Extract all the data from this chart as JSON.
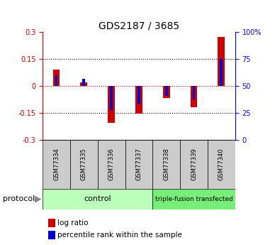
{
  "title": "GDS2187 / 3685",
  "samples": [
    "GSM77334",
    "GSM77335",
    "GSM77336",
    "GSM77337",
    "GSM77338",
    "GSM77339",
    "GSM77340"
  ],
  "log_ratio": [
    0.09,
    0.02,
    -0.205,
    -0.155,
    -0.07,
    -0.12,
    0.27
  ],
  "percentile_rank": [
    0.06,
    0.04,
    -0.135,
    -0.1,
    -0.055,
    -0.075,
    0.15
  ],
  "ylim": [
    -0.3,
    0.3
  ],
  "yticks_left": [
    -0.3,
    -0.15,
    0,
    0.15,
    0.3
  ],
  "yticks_right": [
    0,
    25,
    50,
    75,
    100
  ],
  "bar_color_log": "#cc0000",
  "bar_color_pct": "#0000cc",
  "log_bar_width": 0.25,
  "pct_bar_width": 0.1,
  "groups": [
    {
      "label": "control",
      "n": 4,
      "color": "#bbffbb"
    },
    {
      "label": "triple-fusion transfected",
      "n": 3,
      "color": "#77ee77"
    }
  ],
  "protocol_label": "protocol",
  "legend_log": "log ratio",
  "legend_pct": "percentile rank within the sample",
  "zero_line_color": "#cc0000",
  "dotted_line_color": "#000000",
  "sample_box_color": "#cccccc",
  "title_fontsize": 10,
  "tick_fontsize": 7,
  "sample_fontsize": 6,
  "legend_fontsize": 7.5,
  "protocol_fontsize": 8
}
